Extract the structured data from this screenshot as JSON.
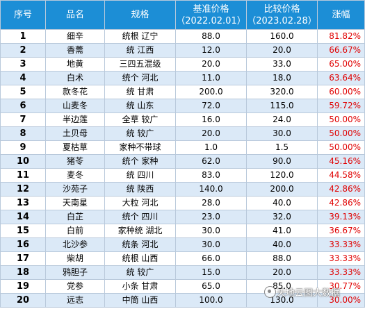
{
  "headers": {
    "index": "序号",
    "name": "品名",
    "spec": "规格",
    "base_price": "基准价格",
    "base_date": "（2022.02.01）",
    "cmp_price": "比较价格",
    "cmp_date": "（2023.02.28）",
    "change": "涨幅"
  },
  "rows": [
    {
      "no": "1",
      "name": "细辛",
      "spec": "统根 辽宁",
      "base": "88.0",
      "cmp": "160.0",
      "pct": "81.82%"
    },
    {
      "no": "2",
      "name": "香薷",
      "spec": "统 江西",
      "base": "12.0",
      "cmp": "20.0",
      "pct": "66.67%"
    },
    {
      "no": "3",
      "name": "地黄",
      "spec": "三四五混级",
      "base": "20.0",
      "cmp": "33.0",
      "pct": "65.00%"
    },
    {
      "no": "4",
      "name": "白术",
      "spec": "统个 河北",
      "base": "11.0",
      "cmp": "18.0",
      "pct": "63.64%"
    },
    {
      "no": "5",
      "name": "款冬花",
      "spec": "统 甘肃",
      "base": "200.0",
      "cmp": "320.0",
      "pct": "60.00%"
    },
    {
      "no": "6",
      "name": "山麦冬",
      "spec": "统 山东",
      "base": "72.0",
      "cmp": "115.0",
      "pct": "59.72%"
    },
    {
      "no": "7",
      "name": "半边莲",
      "spec": "全草 较广",
      "base": "16.0",
      "cmp": "24.0",
      "pct": "50.00%"
    },
    {
      "no": "8",
      "name": "土贝母",
      "spec": "统 较广",
      "base": "20.0",
      "cmp": "30.0",
      "pct": "50.00%"
    },
    {
      "no": "9",
      "name": "夏枯草",
      "spec": "家种不带球",
      "base": "1.0",
      "cmp": "1.5",
      "pct": "50.00%"
    },
    {
      "no": "10",
      "name": "猪苓",
      "spec": "统个 家种",
      "base": "62.0",
      "cmp": "90.0",
      "pct": "45.16%"
    },
    {
      "no": "11",
      "name": "麦冬",
      "spec": "统 四川",
      "base": "83.0",
      "cmp": "120.0",
      "pct": "44.58%"
    },
    {
      "no": "12",
      "name": "沙苑子",
      "spec": "统 陕西",
      "base": "140.0",
      "cmp": "200.0",
      "pct": "42.86%"
    },
    {
      "no": "13",
      "name": "天南星",
      "spec": "大粒 河北",
      "base": "28.0",
      "cmp": "40.0",
      "pct": "42.86%"
    },
    {
      "no": "14",
      "name": "白芷",
      "spec": "统个 四川",
      "base": "23.0",
      "cmp": "32.0",
      "pct": "39.13%"
    },
    {
      "no": "15",
      "name": "白前",
      "spec": "家种统 湖北",
      "base": "30.0",
      "cmp": "41.0",
      "pct": "36.67%"
    },
    {
      "no": "16",
      "name": "北沙参",
      "spec": "统条 河北",
      "base": "30.0",
      "cmp": "40.0",
      "pct": "33.33%"
    },
    {
      "no": "17",
      "name": "柴胡",
      "spec": "统根 山西",
      "base": "66.0",
      "cmp": "88.0",
      "pct": "33.33%"
    },
    {
      "no": "18",
      "name": "鸦胆子",
      "spec": "统 较广",
      "base": "15.0",
      "cmp": "20.0",
      "pct": "33.33%"
    },
    {
      "no": "19",
      "name": "党参",
      "spec": "小条 甘肃",
      "base": "65.0",
      "cmp": "85.0",
      "pct": "30.77%"
    },
    {
      "no": "20",
      "name": "远志",
      "spec": "中筒 山西",
      "base": "100.0",
      "cmp": "130.0",
      "pct": "30.00%"
    }
  ],
  "watermark": "天地云图大数据",
  "colors": {
    "header_bg": "#1c8ed6",
    "stripe": "#dbe9f7",
    "pct_text": "#e00000"
  }
}
